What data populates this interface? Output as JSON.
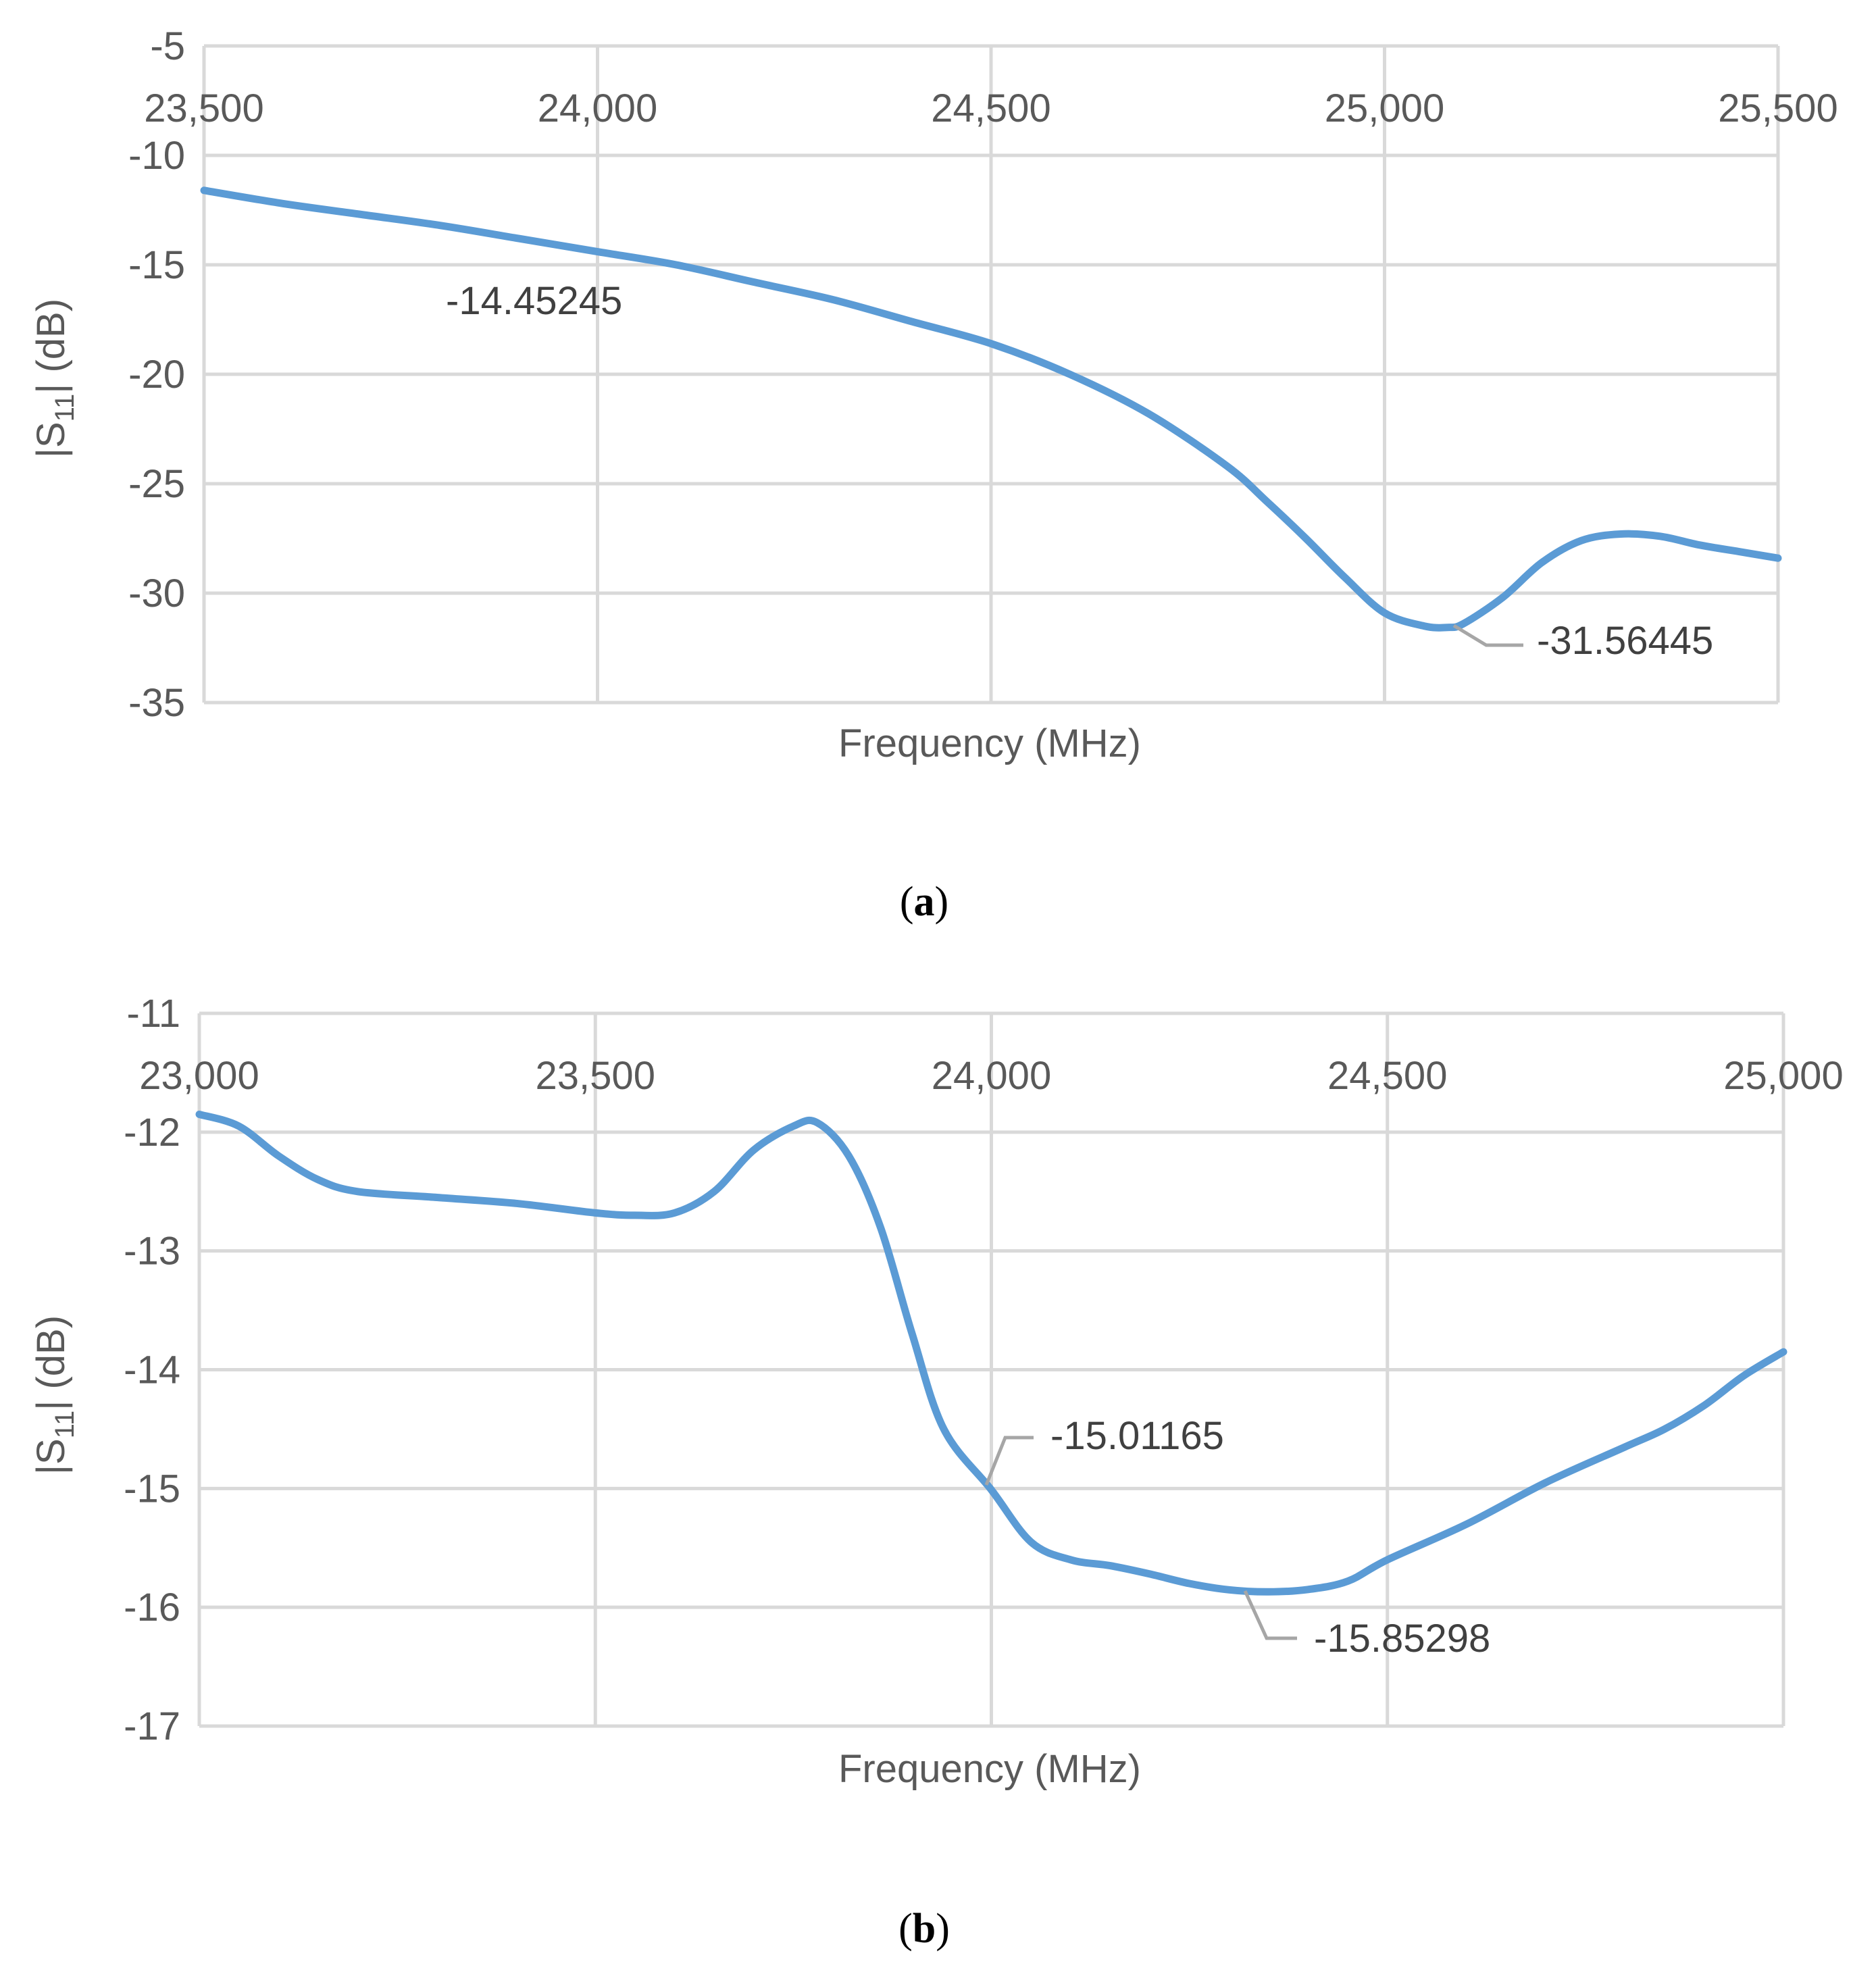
{
  "chart_data": [
    {
      "type": "line",
      "panel_label": "a",
      "xlabel": "Frequency (MHz)",
      "ylabel": "|S11| (dB)",
      "ylabel_main": "|S",
      "ylabel_sub": "11",
      "ylabel_tail": "| (dB)",
      "xlim": [
        23500,
        25500
      ],
      "ylim": [
        -35,
        -5
      ],
      "x_ticks": [
        23500,
        24000,
        24500,
        25000,
        25500
      ],
      "x_tick_labels": [
        "23,500",
        "24,000",
        "24,500",
        "25,000",
        "25,500"
      ],
      "y_ticks": [
        -5,
        -10,
        -15,
        -20,
        -25,
        -30,
        -35
      ],
      "y_tick_labels": [
        "-5",
        "-10",
        "-15",
        "-20",
        "-25",
        "-30",
        "-35"
      ],
      "grid": true,
      "x_axis_position": "top",
      "series": [
        {
          "color": "#5b9bd5",
          "x": [
            23500,
            23600,
            23700,
            23800,
            23900,
            24000,
            24100,
            24200,
            24300,
            24400,
            24500,
            24600,
            24700,
            24800,
            24850,
            24900,
            24950,
            25000,
            25050,
            25080,
            25100,
            25150,
            25200,
            25250,
            25300,
            25350,
            25400,
            25450,
            25500
          ],
          "y": [
            -11.6,
            -12.2,
            -12.7,
            -13.2,
            -13.8,
            -14.4,
            -15.0,
            -15.8,
            -16.6,
            -17.6,
            -18.6,
            -20.0,
            -21.8,
            -24.2,
            -25.8,
            -27.5,
            -29.3,
            -30.9,
            -31.5,
            -31.56445,
            -31.4,
            -30.2,
            -28.6,
            -27.6,
            -27.3,
            -27.4,
            -27.8,
            -28.1,
            -28.4
          ]
        }
      ],
      "annotations": [
        {
          "text": "-14.45245",
          "x": 24000,
          "y": -14.45245
        },
        {
          "text": "-31.56445",
          "x": 25080,
          "y": -31.56445
        }
      ]
    },
    {
      "type": "line",
      "panel_label": "b",
      "xlabel": "Frequency (MHz)",
      "ylabel": "|S11| (dB)",
      "ylabel_main": "|S",
      "ylabel_sub": "11",
      "ylabel_tail": "| (dB)",
      "xlim": [
        23000,
        25000
      ],
      "ylim": [
        -17,
        -11
      ],
      "x_ticks": [
        23000,
        23500,
        24000,
        24500,
        25000
      ],
      "x_tick_labels": [
        "23,000",
        "23,500",
        "24,000",
        "24,500",
        "25,000"
      ],
      "y_ticks": [
        -11,
        -12,
        -13,
        -14,
        -15,
        -16,
        -17
      ],
      "y_tick_labels": [
        "-11",
        "-12",
        "-13",
        "-14",
        "-15",
        "-16",
        "-17"
      ],
      "grid": true,
      "x_axis_position": "top",
      "series": [
        {
          "color": "#5b9bd5",
          "x": [
            23000,
            23050,
            23100,
            23150,
            23200,
            23300,
            23400,
            23500,
            23550,
            23600,
            23650,
            23700,
            23750,
            23780,
            23820,
            23860,
            23900,
            23940,
            24000,
            24050,
            24100,
            24150,
            24200,
            24250,
            24300,
            24350,
            24400,
            24450,
            24500,
            24600,
            24700,
            24800,
            24850,
            24900,
            24950,
            25000
          ],
          "y": [
            -11.85,
            -11.95,
            -12.2,
            -12.4,
            -12.5,
            -12.55,
            -12.6,
            -12.68,
            -12.7,
            -12.68,
            -12.5,
            -12.15,
            -11.95,
            -11.92,
            -12.2,
            -12.8,
            -13.7,
            -14.5,
            -15.01165,
            -15.45,
            -15.6,
            -15.65,
            -15.72,
            -15.8,
            -15.85298,
            -15.87,
            -15.85,
            -15.78,
            -15.6,
            -15.3,
            -14.95,
            -14.65,
            -14.5,
            -14.3,
            -14.05,
            -13.85
          ]
        }
      ],
      "annotations": [
        {
          "text": "-15.01165",
          "x": 24000,
          "y": -15.01165
        },
        {
          "text": "-15.85298",
          "x": 24320,
          "y": -15.85298
        }
      ]
    }
  ]
}
